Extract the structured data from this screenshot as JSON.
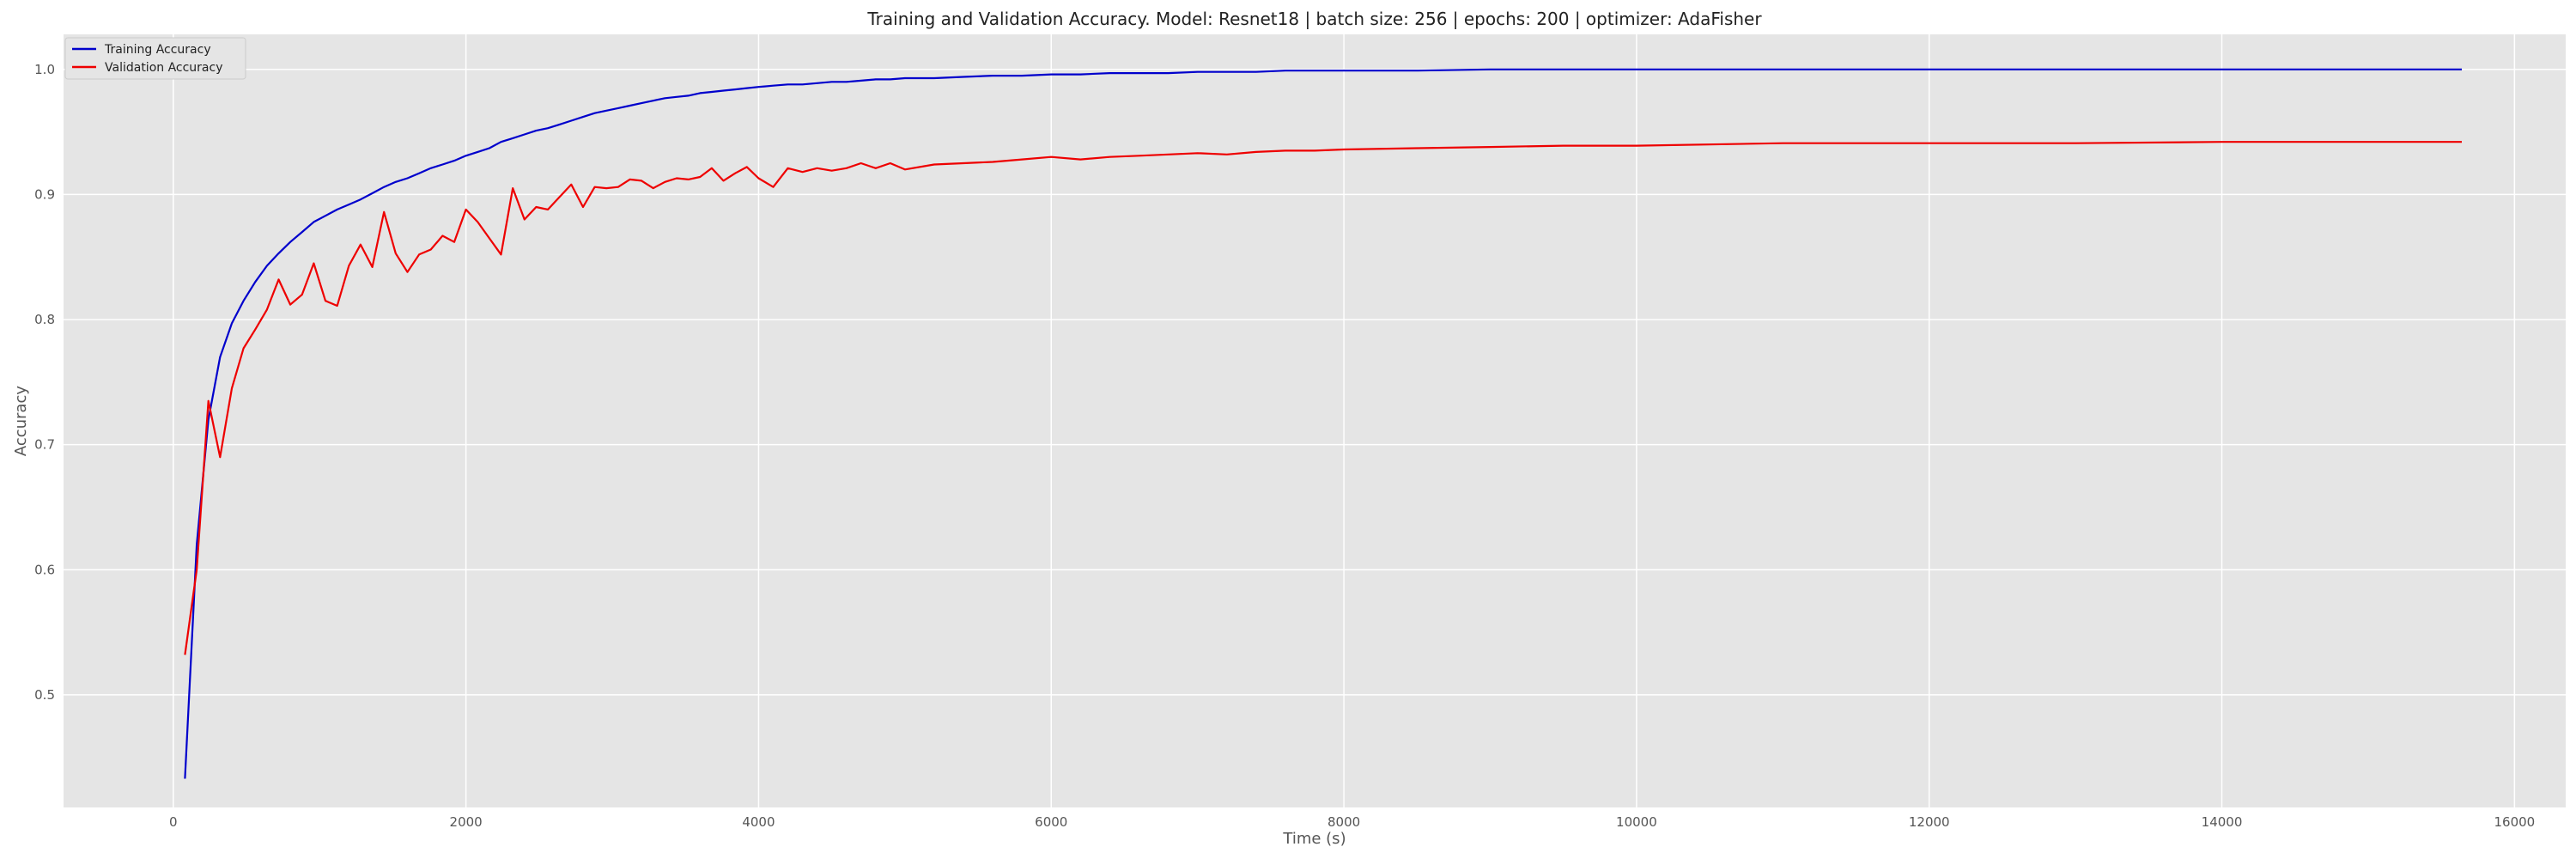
{
  "chart_data": {
    "type": "line",
    "title": "Training and Validation Accuracy. Model: Resnet18 | batch size: 256 | epochs: 200 | optimizer: AdaFisher",
    "xlabel": "Time (s)",
    "ylabel": "Accuracy",
    "xlim": [
      -750,
      16350
    ],
    "ylim": [
      0.41,
      1.028
    ],
    "xticks": [
      0,
      2000,
      4000,
      6000,
      8000,
      10000,
      12000,
      14000,
      16000
    ],
    "yticks": [
      0.5,
      0.6,
      0.7,
      0.8,
      0.9,
      1.0
    ],
    "xtick_labels": [
      "0",
      "2000",
      "4000",
      "6000",
      "8000",
      "10000",
      "12000",
      "14000",
      "16000"
    ],
    "ytick_labels": [
      "0.5",
      "0.6",
      "0.7",
      "0.8",
      "0.9",
      "1.0"
    ],
    "grid": true,
    "legend_position": "top-left",
    "background": "#e5e5e5",
    "series": [
      {
        "name": "Training Accuracy",
        "color": "#0000cc",
        "x": [
          80,
          160,
          240,
          320,
          400,
          480,
          560,
          640,
          720,
          800,
          880,
          960,
          1040,
          1120,
          1200,
          1280,
          1360,
          1440,
          1520,
          1600,
          1680,
          1760,
          1840,
          1920,
          2000,
          2080,
          2160,
          2240,
          2320,
          2400,
          2480,
          2560,
          2640,
          2720,
          2800,
          2880,
          2960,
          3040,
          3120,
          3200,
          3280,
          3360,
          3440,
          3520,
          3600,
          3680,
          3760,
          3840,
          3920,
          4000,
          4100,
          4200,
          4300,
          4400,
          4500,
          4600,
          4700,
          4800,
          4900,
          5000,
          5200,
          5400,
          5600,
          5800,
          6000,
          6200,
          6400,
          6600,
          6800,
          7000,
          7200,
          7400,
          7600,
          7800,
          8000,
          8500,
          9000,
          9500,
          10000,
          11000,
          12000,
          13000,
          14000,
          15000,
          15640
        ],
        "y": [
          0.433,
          0.62,
          0.72,
          0.77,
          0.797,
          0.815,
          0.83,
          0.843,
          0.853,
          0.862,
          0.87,
          0.878,
          0.883,
          0.888,
          0.892,
          0.896,
          0.901,
          0.906,
          0.91,
          0.913,
          0.917,
          0.921,
          0.924,
          0.927,
          0.931,
          0.934,
          0.937,
          0.942,
          0.945,
          0.948,
          0.951,
          0.953,
          0.956,
          0.959,
          0.962,
          0.965,
          0.967,
          0.969,
          0.971,
          0.973,
          0.975,
          0.977,
          0.978,
          0.979,
          0.981,
          0.982,
          0.983,
          0.984,
          0.985,
          0.986,
          0.987,
          0.988,
          0.988,
          0.989,
          0.99,
          0.99,
          0.991,
          0.992,
          0.992,
          0.993,
          0.993,
          0.994,
          0.995,
          0.995,
          0.996,
          0.996,
          0.997,
          0.997,
          0.997,
          0.998,
          0.998,
          0.998,
          0.999,
          0.999,
          0.999,
          0.999,
          1.0,
          1.0,
          1.0,
          1.0,
          1.0,
          1.0,
          1.0,
          1.0,
          1.0
        ]
      },
      {
        "name": "Validation Accuracy",
        "color": "#ee0000",
        "x": [
          80,
          160,
          240,
          320,
          400,
          480,
          560,
          640,
          720,
          800,
          880,
          960,
          1040,
          1120,
          1200,
          1280,
          1360,
          1440,
          1520,
          1600,
          1680,
          1760,
          1840,
          1920,
          2000,
          2080,
          2160,
          2240,
          2320,
          2400,
          2480,
          2560,
          2640,
          2720,
          2800,
          2880,
          2960,
          3040,
          3120,
          3200,
          3280,
          3360,
          3440,
          3520,
          3600,
          3680,
          3760,
          3840,
          3920,
          4000,
          4100,
          4200,
          4300,
          4400,
          4500,
          4600,
          4700,
          4800,
          4900,
          5000,
          5200,
          5400,
          5600,
          5800,
          6000,
          6200,
          6400,
          6600,
          6800,
          7000,
          7200,
          7400,
          7600,
          7800,
          8000,
          8500,
          9000,
          9500,
          10000,
          11000,
          12000,
          13000,
          14000,
          15000,
          15640
        ],
        "y": [
          0.532,
          0.6,
          0.735,
          0.69,
          0.745,
          0.777,
          0.792,
          0.808,
          0.832,
          0.812,
          0.82,
          0.845,
          0.815,
          0.811,
          0.843,
          0.86,
          0.842,
          0.886,
          0.853,
          0.838,
          0.852,
          0.856,
          0.867,
          0.862,
          0.888,
          0.878,
          0.865,
          0.852,
          0.905,
          0.88,
          0.89,
          0.888,
          0.898,
          0.908,
          0.89,
          0.906,
          0.905,
          0.906,
          0.912,
          0.911,
          0.905,
          0.91,
          0.913,
          0.912,
          0.914,
          0.921,
          0.911,
          0.917,
          0.922,
          0.913,
          0.906,
          0.921,
          0.918,
          0.921,
          0.919,
          0.921,
          0.925,
          0.921,
          0.925,
          0.92,
          0.924,
          0.925,
          0.926,
          0.928,
          0.93,
          0.928,
          0.93,
          0.931,
          0.932,
          0.933,
          0.932,
          0.934,
          0.935,
          0.935,
          0.936,
          0.937,
          0.938,
          0.939,
          0.939,
          0.941,
          0.941,
          0.941,
          0.942,
          0.942,
          0.942
        ]
      }
    ]
  }
}
